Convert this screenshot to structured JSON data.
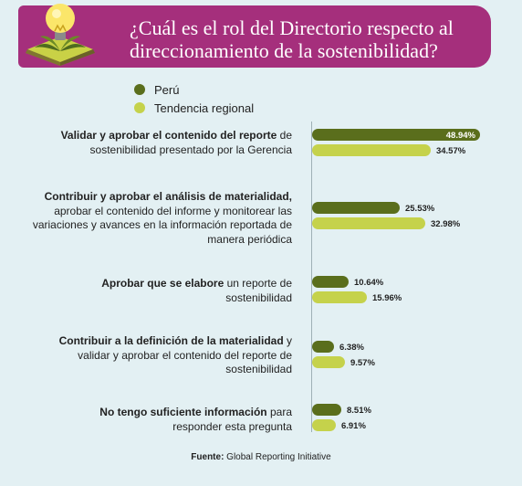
{
  "header": {
    "title": "¿Cuál es el rol del Directorio respecto al direccionamiento de la sostenibilidad?"
  },
  "legend": [
    {
      "label": "Perú",
      "color": "#5a6e1c"
    },
    {
      "label": "Tendencia regional",
      "color": "#c5d24b"
    }
  ],
  "chart_data": {
    "type": "bar",
    "orientation": "horizontal",
    "title": "¿Cuál es el rol del Directorio respecto al direccionamiento de la sostenibilidad?",
    "categories": [
      {
        "bold": "Validar y aprobar el contenido del reporte",
        "rest": " de sostenibilidad presentado por la Gerencia"
      },
      {
        "bold": "Contribuir y aprobar el análisis de materialidad,",
        "rest": " aprobar el contenido del informe y monitorear las variaciones y avances en la información reportada de manera periódica"
      },
      {
        "bold": "Aprobar que se elabore",
        "rest": " un reporte de sostenibilidad"
      },
      {
        "bold": "Contribuir a la definición de la materialidad",
        "rest": " y validar y aprobar el contenido del reporte de sostenibilidad"
      },
      {
        "bold": "No tengo suficiente información",
        "rest": " para responder esta pregunta"
      }
    ],
    "series": [
      {
        "name": "Perú",
        "color": "#5a6e1c",
        "values": [
          48.94,
          25.53,
          10.64,
          6.38,
          8.51
        ],
        "labels": [
          "48.94%",
          "25.53%",
          "10.64%",
          "6.38%",
          "8.51%"
        ]
      },
      {
        "name": "Tendencia regional",
        "color": "#c5d24b",
        "values": [
          34.57,
          32.98,
          15.96,
          9.57,
          6.91
        ],
        "labels": [
          "34.57%",
          "32.98%",
          "15.96%",
          "9.57%",
          "6.91%"
        ]
      }
    ],
    "xlim": [
      0,
      50
    ]
  },
  "footer": {
    "source_label": "Fuente:",
    "source_text": " Global Reporting Initiative"
  }
}
